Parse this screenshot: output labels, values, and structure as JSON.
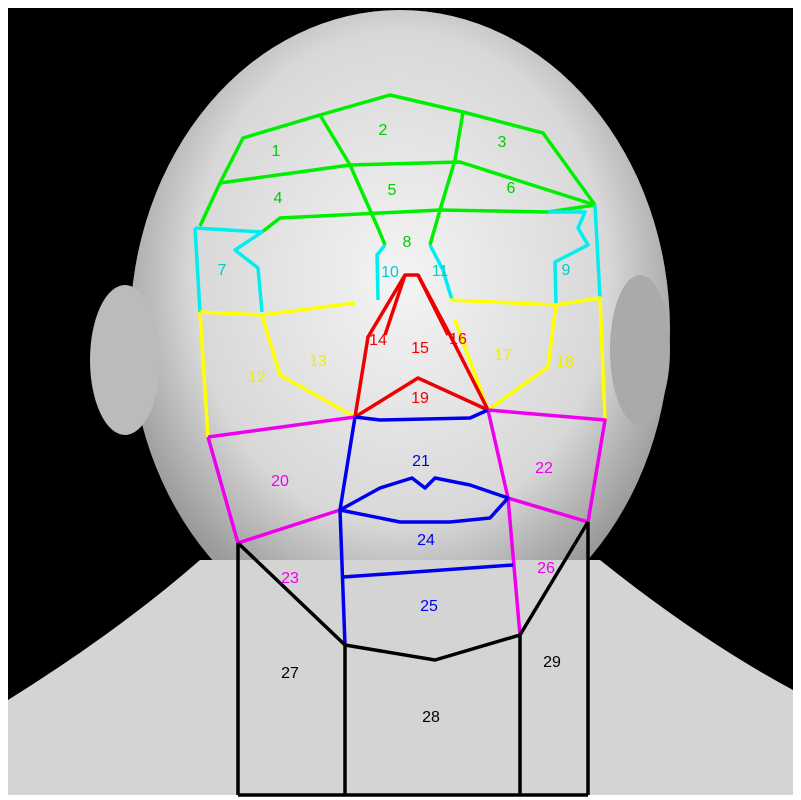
{
  "regions": [
    {
      "label": "1"
    },
    {
      "label": "2"
    },
    {
      "label": "3"
    },
    {
      "label": "4"
    },
    {
      "label": "5"
    },
    {
      "label": "6"
    },
    {
      "label": "7"
    },
    {
      "label": "8"
    },
    {
      "label": "9"
    },
    {
      "label": "10"
    },
    {
      "label": "11"
    },
    {
      "label": "12"
    },
    {
      "label": "13"
    },
    {
      "label": "14"
    },
    {
      "label": "15"
    },
    {
      "label": "16"
    },
    {
      "label": "17"
    },
    {
      "label": "18"
    },
    {
      "label": "19"
    },
    {
      "label": "20"
    },
    {
      "label": "21"
    },
    {
      "label": "22"
    },
    {
      "label": "23"
    },
    {
      "label": "24"
    },
    {
      "label": "25"
    },
    {
      "label": "26"
    },
    {
      "label": "27"
    },
    {
      "label": "28"
    },
    {
      "label": "29"
    }
  ]
}
